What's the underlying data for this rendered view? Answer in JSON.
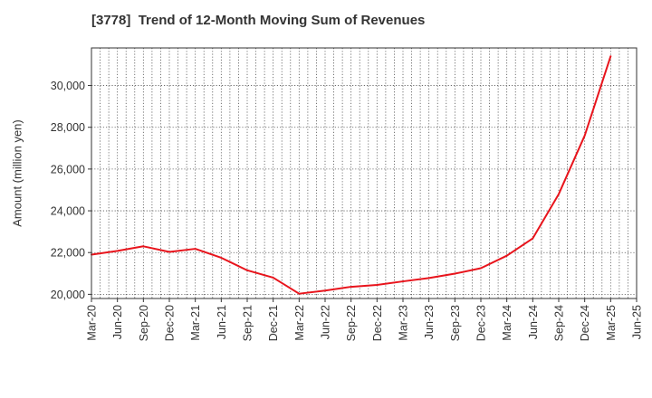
{
  "chart_data": {
    "type": "line",
    "title": "[3778]  Trend of 12-Month Moving Sum of Revenues",
    "xlabel": "",
    "ylabel": "Amount (million yen)",
    "ylim": [
      19800,
      31800
    ],
    "y_ticks": [
      20000,
      22000,
      24000,
      26000,
      28000,
      30000
    ],
    "y_tick_labels": [
      "20,000",
      "22,000",
      "24,000",
      "26,000",
      "28,000",
      "30,000"
    ],
    "x_tick_labels": [
      "Mar-20",
      "Jun-20",
      "Sep-20",
      "Dec-20",
      "Mar-21",
      "Jun-21",
      "Sep-21",
      "Dec-21",
      "Mar-22",
      "Jun-22",
      "Sep-22",
      "Dec-22",
      "Mar-23",
      "Jun-23",
      "Sep-23",
      "Dec-23",
      "Mar-24",
      "Jun-24",
      "Sep-24",
      "Dec-24",
      "Mar-25",
      "Jun-25"
    ],
    "grid": true,
    "series": [
      {
        "color": "#e8141c",
        "x": [
          "Mar-20",
          "Jun-20",
          "Sep-20",
          "Dec-20",
          "Mar-21",
          "Jun-21",
          "Sep-21",
          "Dec-21",
          "Mar-22",
          "Jun-22",
          "Sep-22",
          "Dec-22",
          "Mar-23",
          "Jun-23",
          "Sep-23",
          "Dec-23",
          "Mar-24",
          "Jun-24",
          "Sep-24",
          "Dec-24",
          "Mar-25"
        ],
        "values": [
          21900,
          22080,
          22300,
          22030,
          22180,
          21750,
          21150,
          20800,
          20030,
          20180,
          20360,
          20450,
          20620,
          20780,
          20990,
          21250,
          21850,
          22680,
          24800,
          27600,
          31400
        ]
      }
    ]
  }
}
